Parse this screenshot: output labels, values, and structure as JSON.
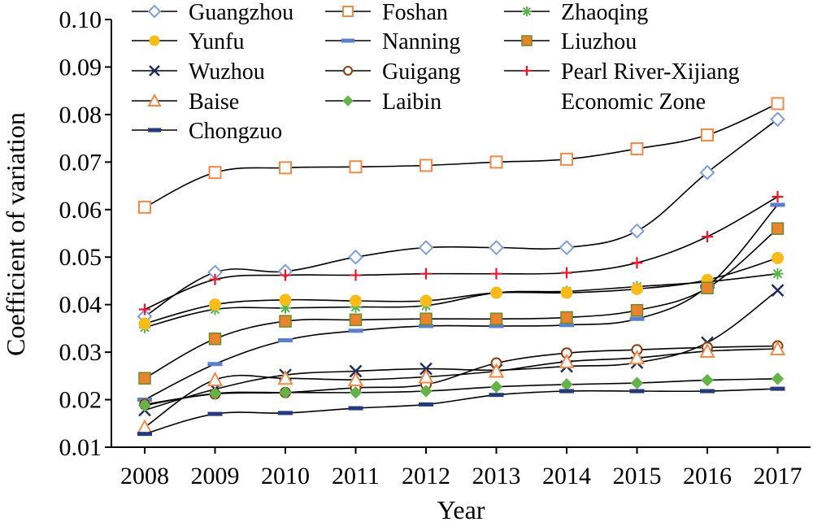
{
  "chart_data": {
    "type": "line",
    "title": "",
    "xlabel": "Year",
    "ylabel": "Coefficient of variation",
    "x": [
      "2008",
      "2009",
      "2010",
      "2011",
      "2012",
      "2013",
      "2014",
      "2015",
      "2016",
      "2017"
    ],
    "ylim": [
      0.01,
      0.1
    ],
    "yticks": [
      "0.01",
      "0.02",
      "0.03",
      "0.04",
      "0.05",
      "0.06",
      "0.07",
      "0.08",
      "0.09",
      "0.10"
    ],
    "legend_position": "top, inside plot area",
    "grid": false,
    "series": [
      {
        "name": "Guangzhou",
        "marker": "diamond",
        "color": "#7f9fd4",
        "values": [
          0.0375,
          0.0468,
          0.047,
          0.05,
          0.052,
          0.052,
          0.052,
          0.0555,
          0.0678,
          0.079
        ]
      },
      {
        "name": "Foshan",
        "marker": "square-open",
        "color": "#ee8a4a",
        "values": [
          0.0605,
          0.0678,
          0.0688,
          0.069,
          0.0693,
          0.07,
          0.0706,
          0.0728,
          0.0757,
          0.0823
        ]
      },
      {
        "name": "Zhaoqing",
        "marker": "asterisk",
        "color": "#55b349",
        "values": [
          0.0352,
          0.039,
          0.0393,
          0.0395,
          0.0398,
          0.0425,
          0.0428,
          0.0438,
          0.0448,
          0.0465
        ]
      },
      {
        "name": "Yunfu",
        "marker": "circle-filled",
        "color": "#f7bc1c",
        "values": [
          0.036,
          0.04,
          0.041,
          0.0408,
          0.0408,
          0.0425,
          0.0425,
          0.0433,
          0.0452,
          0.0498
        ]
      },
      {
        "name": "Nanning",
        "marker": "dash",
        "color": "#5b7fc9",
        "values": [
          0.02,
          0.0275,
          0.0325,
          0.0345,
          0.0355,
          0.0355,
          0.0357,
          0.037,
          0.0438,
          0.061
        ]
      },
      {
        "name": "Liuzhou",
        "marker": "square-filled",
        "color": "#e9842e",
        "values": [
          0.0245,
          0.0328,
          0.0365,
          0.0368,
          0.037,
          0.037,
          0.0373,
          0.0388,
          0.0435,
          0.056
        ]
      },
      {
        "name": "Wuzhou",
        "marker": "x",
        "color": "#1c2b5e",
        "values": [
          0.0178,
          0.0222,
          0.0252,
          0.026,
          0.0265,
          0.0262,
          0.027,
          0.0278,
          0.032,
          0.043
        ]
      },
      {
        "name": "Guigang",
        "marker": "circle-open",
        "color": "#8b3d10",
        "values": [
          0.019,
          0.0212,
          0.0215,
          0.0225,
          0.0232,
          0.0277,
          0.0298,
          0.0305,
          0.031,
          0.0313
        ]
      },
      {
        "name": "Pearl River-Xijiang Economic Zone",
        "marker": "plus",
        "color": "#e8162a",
        "values": [
          0.039,
          0.0453,
          0.0462,
          0.0462,
          0.0465,
          0.0465,
          0.0467,
          0.0488,
          0.0543,
          0.0627
        ]
      },
      {
        "name": "Baise",
        "marker": "triangle-open",
        "color": "#ee8a4a",
        "values": [
          0.0142,
          0.0242,
          0.0245,
          0.0242,
          0.0248,
          0.026,
          0.028,
          0.0288,
          0.0302,
          0.0307
        ]
      },
      {
        "name": "Laibin",
        "marker": "diamond-filled",
        "color": "#63b34a",
        "values": [
          0.0188,
          0.0213,
          0.0215,
          0.0215,
          0.0218,
          0.0227,
          0.0232,
          0.0235,
          0.0241,
          0.0244
        ]
      },
      {
        "name": "Chongzuo",
        "marker": "dash",
        "color": "#243a7a",
        "values": [
          0.0128,
          0.017,
          0.0172,
          0.0182,
          0.019,
          0.021,
          0.0218,
          0.0218,
          0.0218,
          0.0223
        ]
      }
    ]
  }
}
